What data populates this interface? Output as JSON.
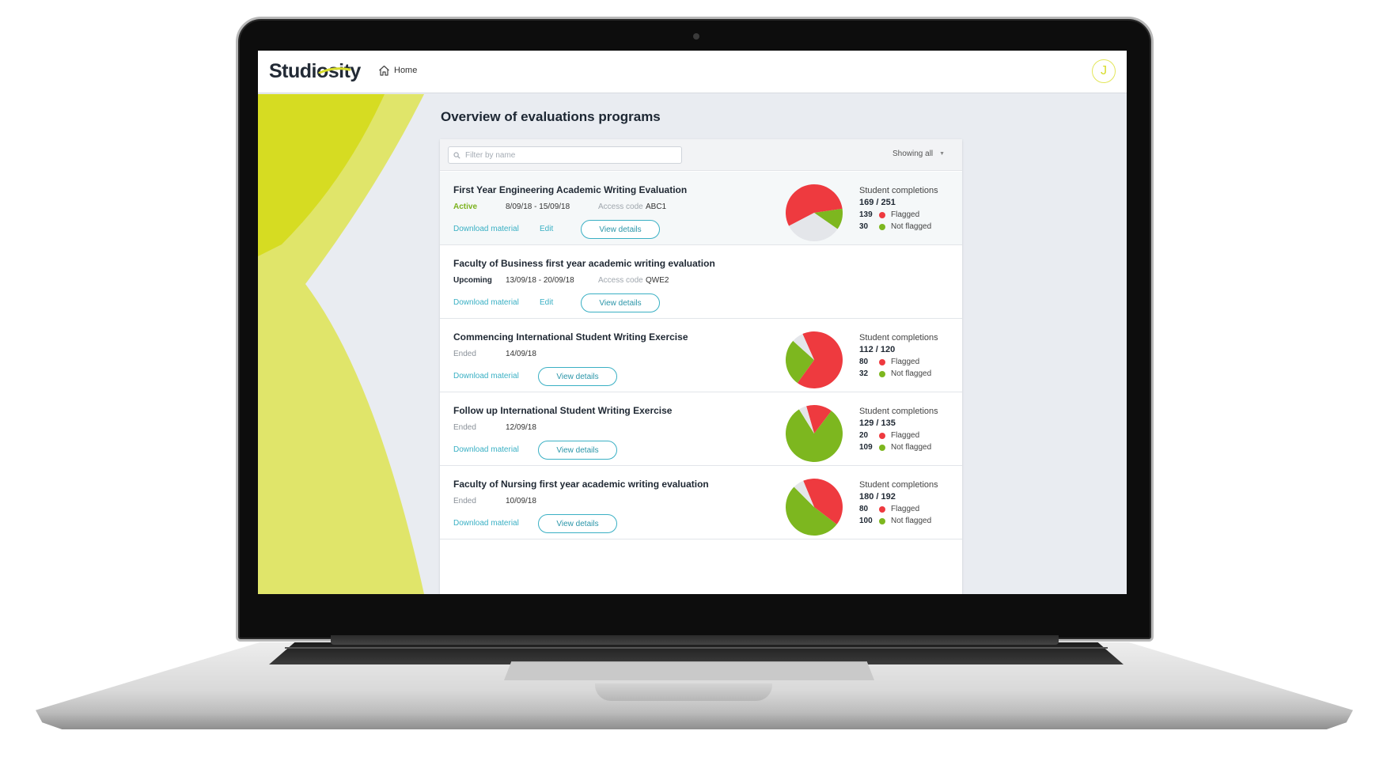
{
  "app": {
    "logo": "Studiosity",
    "home_label": "Home",
    "avatar_initial": "J",
    "page_title": "Overview of evaluations programs"
  },
  "toolbar": {
    "filter_placeholder": "Filter by name",
    "filter_value": "",
    "showing": "Showing all"
  },
  "colors": {
    "accent_lime": "#d7dc2a",
    "flagged": "#ee3a3f",
    "not_flagged": "#7db71f",
    "pending": "#e4e6ea",
    "link": "#3ab0c4"
  },
  "labels": {
    "student_completions": "Student completions",
    "flagged": "Flagged",
    "not_flagged": "Not flagged",
    "access_code": "Access code",
    "download": "Download material",
    "edit": "Edit",
    "view_details": "View details"
  },
  "evaluations": [
    {
      "title": "First Year Engineering Academic Writing Evaluation",
      "status": "Active",
      "dates": "8/09/18 - 15/09/18",
      "access_code": "ABC1",
      "has_edit": true,
      "completed": 169,
      "total": 251,
      "completions_text": "169 / 251",
      "flagged": 139,
      "not_flagged": 30
    },
    {
      "title": "Faculty of Business first year academic writing evaluation",
      "status": "Upcoming",
      "dates": "13/09/18 - 20/09/18",
      "access_code": "QWE2",
      "has_edit": true,
      "completed": null,
      "total": null,
      "completions_text": "",
      "flagged": null,
      "not_flagged": null
    },
    {
      "title": "Commencing International Student Writing Exercise",
      "status": "Ended",
      "dates": "14/09/18",
      "access_code": "",
      "has_edit": false,
      "completed": 112,
      "total": 120,
      "completions_text": "112 / 120",
      "flagged": 80,
      "not_flagged": 32
    },
    {
      "title": "Follow up International Student Writing Exercise",
      "status": "Ended",
      "dates": "12/09/18",
      "access_code": "",
      "has_edit": false,
      "completed": 129,
      "total": 135,
      "completions_text": "129 / 135",
      "flagged": 20,
      "not_flagged": 109
    },
    {
      "title": "Faculty of Nursing first year academic writing evaluation",
      "status": "Ended",
      "dates": "10/09/18",
      "access_code": "",
      "has_edit": false,
      "completed": 180,
      "total": 192,
      "completions_text": "180 / 192",
      "flagged": 80,
      "not_flagged": 100
    }
  ]
}
